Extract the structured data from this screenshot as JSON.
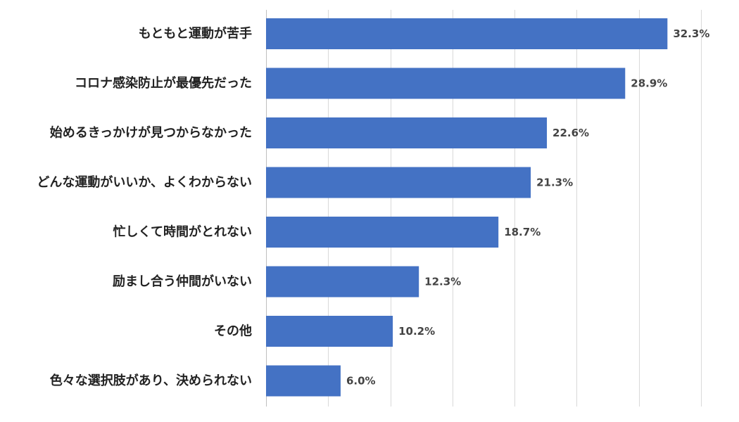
{
  "chart_data": {
    "type": "bar",
    "orientation": "horizontal",
    "title": "",
    "xlabel": "",
    "ylabel": "",
    "categories": [
      "もともと運動が苦手",
      "コロナ感染防止が最優先だった",
      "始めるきっかけが見つからなかった",
      "どんな運動がいいか、よくわからない",
      "忙しくて時間がとれない",
      "励まし合う仲間がいない",
      "その他",
      "色々な選択肢があり、決められない"
    ],
    "values": [
      32.3,
      28.9,
      22.6,
      21.3,
      18.7,
      12.3,
      10.2,
      6.0
    ],
    "value_labels": [
      "32.3%",
      "28.9%",
      "22.6%",
      "21.3%",
      "18.7%",
      "12.3%",
      "10.2%",
      "6.0%"
    ],
    "xlim": [
      0,
      35
    ],
    "grid": true,
    "legend": "none",
    "colors": {
      "bar": "#4472C4",
      "grid": "#D9D9D9",
      "category_text": "#222222",
      "value_text": "#444444"
    }
  }
}
